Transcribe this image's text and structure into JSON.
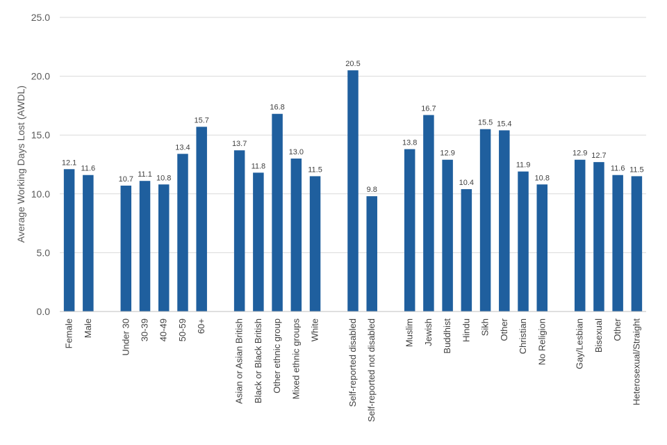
{
  "chart_data": {
    "type": "bar",
    "title": "",
    "xlabel": "",
    "ylabel": "Average Working Days Lost (AWDL)",
    "ylim": [
      0,
      25
    ],
    "yticks": [
      "0.0",
      "5.0",
      "10.0",
      "15.0",
      "20.0",
      "25.0"
    ],
    "grid": true,
    "color": "#1f5f9e",
    "groups": [
      {
        "categories": [
          "Female",
          "Male"
        ],
        "values": [
          12.1,
          11.6
        ]
      },
      {
        "categories": [
          "Under 30",
          "30-39",
          "40-49",
          "50-59",
          "60+"
        ],
        "values": [
          10.7,
          11.1,
          10.8,
          13.4,
          15.7
        ]
      },
      {
        "categories": [
          "Asian or Asian British",
          "Black or Black British",
          "Other ethnic group",
          "Mixed ethnic groups",
          "White"
        ],
        "values": [
          13.7,
          11.8,
          16.8,
          13.0,
          11.5
        ]
      },
      {
        "categories": [
          "Self-reported disabled",
          "Self-reported not disabled"
        ],
        "values": [
          20.5,
          9.8
        ]
      },
      {
        "categories": [
          "Muslim",
          "Jewish",
          "Buddhist",
          "Hindu",
          "Sikh",
          "Other",
          "Christian",
          "No Religion"
        ],
        "values": [
          13.8,
          16.7,
          12.9,
          10.4,
          15.5,
          15.4,
          11.9,
          10.8
        ]
      },
      {
        "categories": [
          "Gay/Lesbian",
          "Bisexual",
          "Other",
          "Heterosexual/Straight"
        ],
        "values": [
          12.9,
          12.7,
          11.6,
          11.5
        ]
      }
    ]
  }
}
